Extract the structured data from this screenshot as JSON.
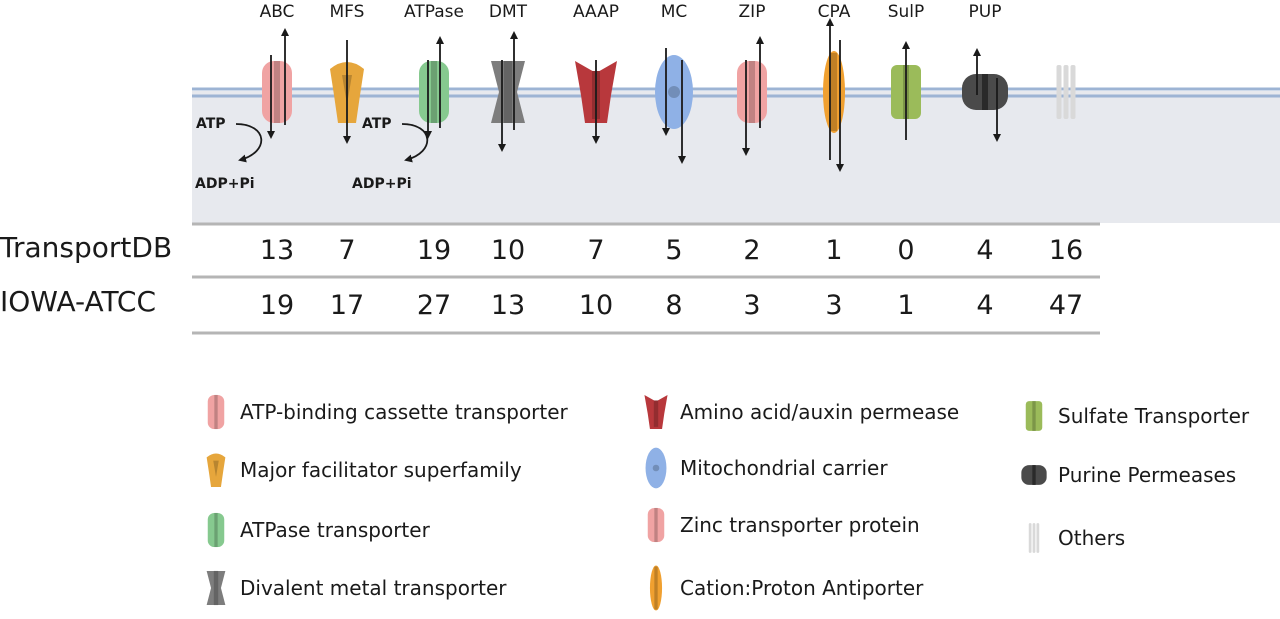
{
  "families": [
    {
      "abbr": "ABC",
      "color": "#f0a3a3",
      "icon": "abc-transporter-icon"
    },
    {
      "abbr": "MFS",
      "color": "#e6a63c",
      "icon": "mfs-transporter-icon"
    },
    {
      "abbr": "ATPase",
      "color": "#86c98f",
      "icon": "atpase-transporter-icon"
    },
    {
      "abbr": "DMT",
      "color": "#7d7d7d",
      "icon": "dmt-transporter-icon"
    },
    {
      "abbr": "AAAP",
      "color": "#b8383c",
      "icon": "aaap-transporter-icon"
    },
    {
      "abbr": "MC",
      "color": "#8fb1e6",
      "icon": "mc-transporter-icon"
    },
    {
      "abbr": "ZIP",
      "color": "#f0a3a3",
      "icon": "zip-transporter-icon"
    },
    {
      "abbr": "CPA",
      "color": "#f0a030",
      "icon": "cpa-transporter-icon"
    },
    {
      "abbr": "SulP",
      "color": "#9bbb5a",
      "icon": "sulp-transporter-icon"
    },
    {
      "abbr": "PUP",
      "color": "#4a4a4a",
      "icon": "pup-transporter-icon"
    },
    {
      "abbr": "",
      "color": "#d9d9d9",
      "icon": "others-transporter-icon"
    }
  ],
  "atp": {
    "atp_label": "ATP",
    "adp_label": "ADP+Pi"
  },
  "table": {
    "rows": [
      {
        "label": "TransportDB",
        "values": [
          "13",
          "7",
          "19",
          "10",
          "7",
          "5",
          "2",
          "1",
          "0",
          "4",
          "16"
        ]
      },
      {
        "label": "IOWA-ATCC",
        "values": [
          "19",
          "17",
          "27",
          "13",
          "10",
          "8",
          "3",
          "3",
          "1",
          "4",
          "47"
        ]
      }
    ]
  },
  "legend": [
    {
      "label": "ATP-binding cassette transporter",
      "color": "#f0a3a3",
      "icon": "abc-legend-icon"
    },
    {
      "label": "Major facilitator superfamily",
      "color": "#e6a63c",
      "icon": "mfs-legend-icon"
    },
    {
      "label": "ATPase transporter",
      "color": "#86c98f",
      "icon": "atpase-legend-icon"
    },
    {
      "label": "Divalent metal transporter",
      "color": "#7d7d7d",
      "icon": "dmt-legend-icon"
    },
    {
      "label": "Amino acid/auxin permease",
      "color": "#b8383c",
      "icon": "aaap-legend-icon"
    },
    {
      "label": "Mitochondrial carrier",
      "color": "#8fb1e6",
      "icon": "mc-legend-icon"
    },
    {
      "label": "Zinc transporter protein",
      "color": "#f0a3a3",
      "icon": "zip-legend-icon"
    },
    {
      "label": "Cation:Proton Antiporter",
      "color": "#f0a030",
      "icon": "cpa-legend-icon"
    },
    {
      "label": "Sulfate Transporter",
      "color": "#9bbb5a",
      "icon": "sulp-legend-icon"
    },
    {
      "label": "Purine Permeases",
      "color": "#4a4a4a",
      "icon": "pup-legend-icon"
    },
    {
      "label": "Others",
      "color": "#d9d9d9",
      "icon": "others-legend-icon"
    }
  ]
}
